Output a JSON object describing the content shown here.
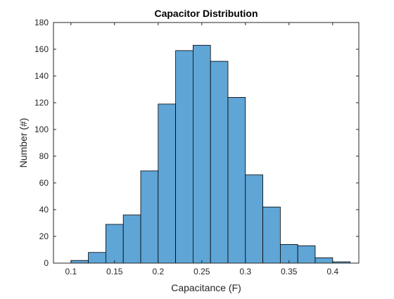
{
  "chart_data": {
    "type": "bar",
    "title": "Capacitor Distribution",
    "xlabel": "Capacitance (F)",
    "ylabel": "Number (#)",
    "xlim": [
      0.08,
      0.43
    ],
    "ylim": [
      0,
      180
    ],
    "xticks": [
      0.1,
      0.15,
      0.2,
      0.25,
      0.3,
      0.35,
      0.4
    ],
    "yticks": [
      0,
      20,
      40,
      60,
      80,
      100,
      120,
      140,
      160,
      180
    ],
    "bin_edges": [
      0.1,
      0.12,
      0.14,
      0.16,
      0.18,
      0.2,
      0.22,
      0.24,
      0.26,
      0.28,
      0.3,
      0.32,
      0.34,
      0.36,
      0.38,
      0.4,
      0.42
    ],
    "values": [
      2,
      8,
      29,
      36,
      69,
      119,
      159,
      163,
      151,
      124,
      66,
      42,
      14,
      13,
      4,
      1
    ],
    "grid": false,
    "legend": "none",
    "bar_color": "#5fa5d6",
    "edge_color": "#000000"
  }
}
